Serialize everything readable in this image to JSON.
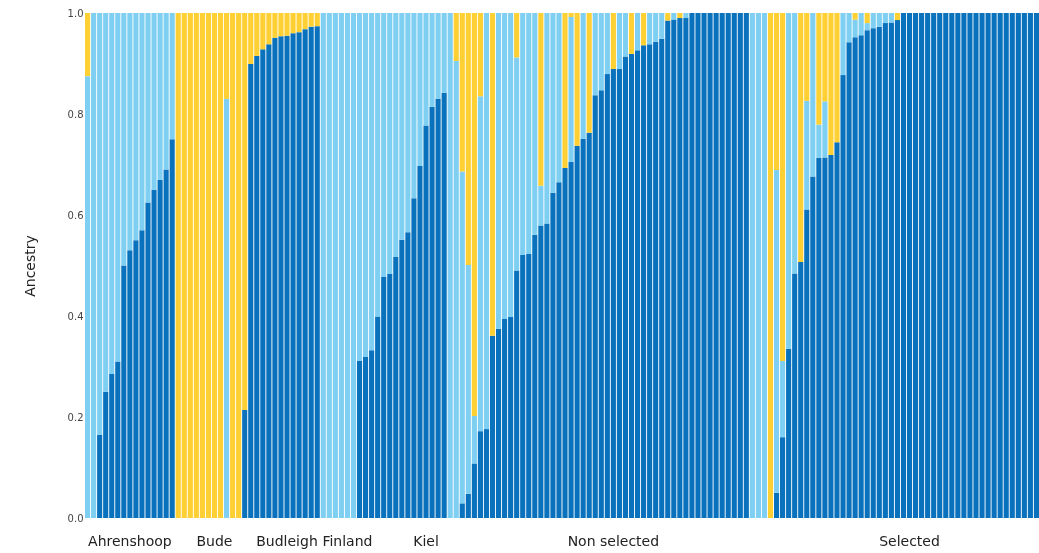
{
  "chart_data": {
    "type": "bar",
    "stacked": true,
    "ylabel": "Ancestry",
    "categories": [
      null,
      null,
      null,
      null,
      null,
      null,
      null,
      "Ahrenshoop",
      null,
      null,
      null,
      null,
      null,
      null,
      null,
      null,
      null,
      null,
      null,
      null,
      null,
      "Bude",
      null,
      null,
      null,
      null,
      null,
      null,
      null,
      null,
      null,
      null,
      null,
      "Budleigh",
      null,
      null,
      null,
      null,
      null,
      null,
      null,
      null,
      null,
      "Finland",
      null,
      null,
      null,
      null,
      null,
      null,
      null,
      null,
      null,
      null,
      null,
      null,
      "Kiel",
      null,
      null,
      null,
      null,
      null,
      null,
      null,
      null,
      null,
      null,
      null,
      null,
      null,
      null,
      null,
      null,
      null,
      null,
      null,
      null,
      null,
      null,
      null,
      null,
      null,
      null,
      null,
      null,
      null,
      null,
      "Non selected",
      null,
      null,
      null,
      null,
      null,
      null,
      null,
      null,
      null,
      null,
      null,
      null,
      null,
      null,
      null,
      null,
      null,
      null,
      null,
      null,
      null,
      null,
      null,
      null,
      null,
      null,
      null,
      null,
      null,
      null,
      null,
      null,
      null,
      null,
      null,
      null,
      null,
      null,
      null,
      null,
      null,
      null,
      null,
      null,
      null,
      null,
      null,
      null,
      "Selected",
      null,
      null,
      null,
      null,
      null,
      null,
      null,
      null,
      null,
      null,
      null,
      null,
      null,
      null,
      null,
      null,
      null,
      null,
      null,
      null,
      null
    ],
    "series": [
      {
        "color": "#0a72bd",
        "values": [
          0,
          0,
          0.165,
          0.25,
          0.285,
          0.31,
          0.5,
          0.53,
          0.55,
          0.57,
          0.625,
          0.65,
          0.67,
          0.69,
          0.75,
          0,
          0,
          0,
          0,
          0,
          0,
          0,
          0,
          0,
          0,
          0,
          0.214,
          0.899,
          0.915,
          0.928,
          0.938,
          0.951,
          0.954,
          0.955,
          0.96,
          0.962,
          0.968,
          0.973,
          0.974,
          0,
          0,
          0,
          0,
          0,
          0,
          0.311,
          0.319,
          0.332,
          0.399,
          0.477,
          0.483,
          0.517,
          0.551,
          0.566,
          0.633,
          0.697,
          0.777,
          0.814,
          0.83,
          0.842,
          0,
          0,
          0.029,
          0.048,
          0.108,
          0.172,
          0.176,
          0.361,
          0.375,
          0.394,
          0.398,
          0.49,
          0.521,
          0.523,
          0.561,
          0.579,
          0.583,
          0.644,
          0.665,
          0.693,
          0.705,
          0.737,
          0.751,
          0.763,
          0.837,
          0.847,
          0.879,
          0.889,
          0.889,
          0.914,
          0.919,
          0.926,
          0.936,
          0.938,
          0.943,
          0.949,
          0.985,
          0.987,
          0.99,
          0.99,
          1,
          1,
          1,
          1,
          1,
          1,
          1,
          1,
          1,
          1,
          0,
          0,
          0,
          0,
          0.05,
          0.16,
          0.335,
          0.484,
          0.507,
          0.611,
          0.676,
          0.713,
          0.714,
          0.719,
          0.744,
          0.877,
          0.942,
          0.952,
          0.956,
          0.966,
          0.97,
          0.973,
          0.98,
          0.981,
          0.986,
          1,
          1,
          1,
          1,
          1,
          1,
          1,
          1,
          1,
          1,
          1,
          1,
          1,
          1,
          1,
          1,
          1,
          1,
          1,
          1,
          1,
          1,
          1
        ]
      },
      {
        "color": "#7fcff2",
        "values": [
          0.875,
          1,
          0.835,
          0.75,
          0.715,
          0.69,
          0.5,
          0.47,
          0.45,
          0.43,
          0.375,
          0.35,
          0.33,
          0.31,
          0.25,
          0,
          0,
          0,
          0,
          0,
          0,
          0,
          0,
          0.83,
          0,
          0,
          0,
          0,
          0,
          0,
          0,
          0,
          0,
          0,
          0,
          0,
          0,
          0,
          0,
          1,
          1,
          1,
          1,
          1,
          1,
          0.689,
          0.681,
          0.668,
          0.601,
          0.523,
          0.517,
          0.483,
          0.449,
          0.434,
          0.367,
          0.303,
          0.223,
          0.186,
          0.17,
          0.158,
          1,
          0.905,
          0.657,
          0.453,
          0.094,
          0.663,
          0.824,
          0,
          0.625,
          0.606,
          0.602,
          0.422,
          0.479,
          0.477,
          0.439,
          0.079,
          0.417,
          0.356,
          0.335,
          0,
          0.287,
          0,
          0.249,
          0,
          0.163,
          0.153,
          0.121,
          0,
          0.111,
          0.086,
          0,
          0.074,
          0,
          0.062,
          0.057,
          0.051,
          0,
          0.013,
          0,
          0.01,
          0,
          0,
          0,
          0,
          0,
          0,
          0,
          0,
          0,
          0,
          1,
          1,
          1,
          0,
          0.639,
          0.151,
          0.665,
          0.516,
          0,
          0.215,
          0.324,
          0.066,
          0.111,
          0,
          0,
          0.123,
          0.058,
          0.035,
          0.044,
          0.014,
          0.03,
          0.027,
          0.02,
          0.019,
          0,
          0,
          0,
          0,
          0,
          0,
          0,
          0,
          0,
          0,
          0,
          0,
          0,
          0,
          0,
          0,
          0,
          0,
          0,
          0,
          0,
          0,
          0,
          0
        ]
      },
      {
        "color": "#ffd033",
        "values": [
          0.125,
          0,
          0,
          0,
          0,
          0,
          0,
          0,
          0,
          0,
          0,
          0,
          0,
          0,
          0,
          1,
          1,
          1,
          1,
          1,
          1,
          1,
          1,
          0.17,
          1,
          1,
          0.786,
          0.101,
          0.085,
          0.072,
          0.062,
          0.049,
          0.046,
          0.045,
          0.04,
          0.038,
          0.032,
          0.027,
          0.026,
          0,
          0,
          0,
          0,
          0,
          0,
          0,
          0,
          0,
          0,
          0,
          0,
          0,
          0,
          0,
          0,
          0,
          0,
          0,
          0,
          0,
          0,
          0.095,
          0.314,
          0.499,
          0.798,
          0.165,
          0,
          0.639,
          0,
          0,
          0,
          0.088,
          0,
          0,
          0,
          0.342,
          0,
          0,
          0,
          0.307,
          0.008,
          0.263,
          0,
          0.237,
          0,
          0,
          0,
          0.111,
          0,
          0,
          0.081,
          0,
          0.064,
          0,
          0,
          0,
          0.015,
          0,
          0.01,
          0,
          0,
          0,
          0,
          0,
          0,
          0,
          0,
          0,
          0,
          0,
          0,
          0,
          0,
          1,
          0.311,
          0.689,
          0,
          0,
          0.493,
          0.174,
          0,
          0.221,
          0.175,
          0.281,
          0.256,
          0,
          0,
          0.013,
          0,
          0.02,
          0,
          0,
          0,
          0,
          0.014,
          0,
          0,
          0,
          0,
          0,
          0,
          0,
          0,
          0,
          0,
          0,
          0,
          0,
          0,
          0,
          0,
          0,
          0,
          0,
          0,
          0,
          0,
          0
        ]
      }
    ],
    "ylim": [
      0,
      1
    ],
    "yticks": [
      {
        "value": 0,
        "label": "0.0"
      },
      {
        "value": 0.2,
        "label": "0.2"
      },
      {
        "value": 0.4,
        "label": "0.4"
      },
      {
        "value": 0.6,
        "label": "0.6"
      },
      {
        "value": 0.8,
        "label": "0.8"
      },
      {
        "value": 1,
        "label": "1.0"
      }
    ],
    "grid": false
  }
}
